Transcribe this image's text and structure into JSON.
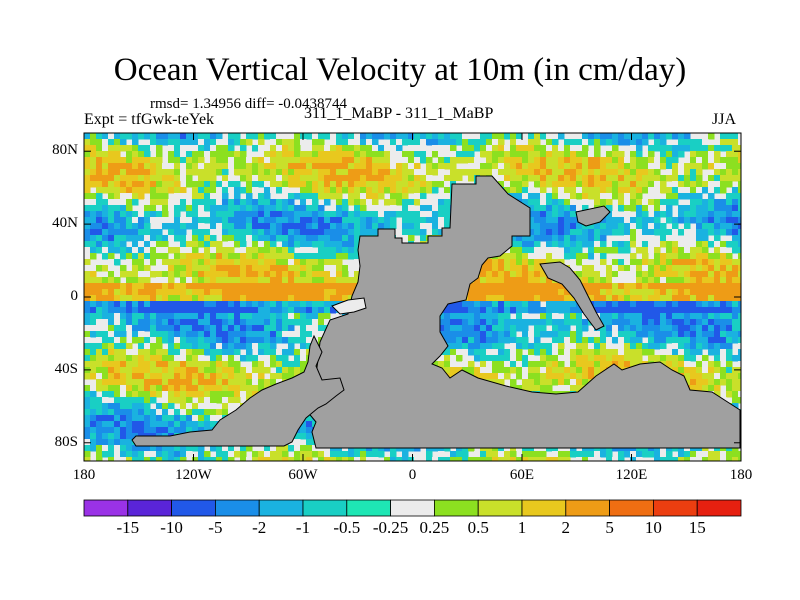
{
  "chart_data": {
    "type": "heatmap",
    "title": "Ocean Vertical Velocity at 10m (in cm/day)",
    "stats": "rmsd= 1.34956 diff= -0.0438744",
    "experiment": "Expt = tfGwk-teYek",
    "subtitle": "311_1_MaBP - 311_1_MaBP",
    "season": "JJA",
    "x_range": [
      -180,
      180
    ],
    "y_range": [
      -90,
      90
    ],
    "x_ticks": [
      {
        "value": -180,
        "label": "180"
      },
      {
        "value": -120,
        "label": "120W"
      },
      {
        "value": -60,
        "label": "60W"
      },
      {
        "value": 0,
        "label": "0"
      },
      {
        "value": 60,
        "label": "60E"
      },
      {
        "value": 120,
        "label": "120E"
      },
      {
        "value": 180,
        "label": "180"
      }
    ],
    "y_ticks": [
      {
        "value": 80,
        "label": "80N"
      },
      {
        "value": 40,
        "label": "40N"
      },
      {
        "value": 0,
        "label": "0"
      },
      {
        "value": -40,
        "label": "40S"
      },
      {
        "value": -80,
        "label": "80S"
      }
    ],
    "colorbar": {
      "labels": [
        "-15",
        "-10",
        "-5",
        "-2",
        "-1",
        "-0.5",
        "-0.25",
        "0.25",
        "0.5",
        "1",
        "2",
        "5",
        "10",
        "15"
      ],
      "colors": [
        "#9a32e6",
        "#5a24d8",
        "#2158e8",
        "#1a8ee8",
        "#1ab2e0",
        "#19cfc4",
        "#1ee6b4",
        "#ececec",
        "#8ce020",
        "#c9e02a",
        "#e8c81e",
        "#ee9c16",
        "#ef6e12",
        "#ec3e10",
        "#e62010"
      ]
    },
    "land_color": "#a0a0a0"
  }
}
